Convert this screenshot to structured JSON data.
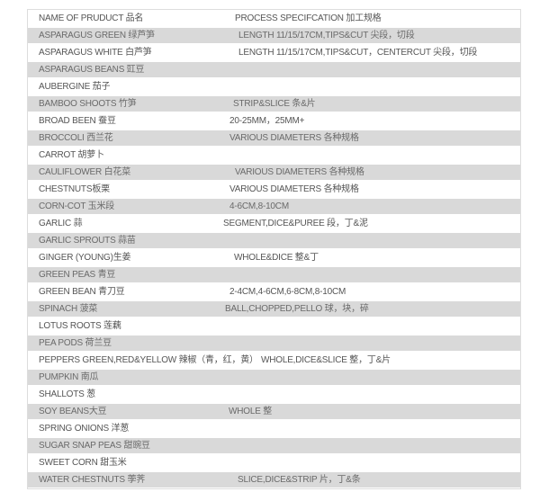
{
  "header": {
    "name": "NAME OF PRUDUCT 品名",
    "spec": "PROCESS SPECIFCATION 加工规格"
  },
  "rows": [
    {
      "name": "ASPARAGUS GREEN 绿芦笋",
      "spec": "LENGTH 11/15/17CM,TIPS&CUT 尖段，切段"
    },
    {
      "name": "ASPARAGUS WHITE 白芦笋",
      "spec": "LENGTH 11/15/17CM,TIPS&CUT，CENTERCUT 尖段，切段"
    },
    {
      "name": "ASPARAGUS BEANS 豇豆",
      "spec": ""
    },
    {
      "name": "AUBERGINE 茄子",
      "spec": ""
    },
    {
      "name": "BAMBOO SHOOTS 竹笋",
      "spec": "STRIP&SLICE 条&片"
    },
    {
      "name": "BROAD BEEN 蚕豆",
      "spec": "20-25MM，25MM+"
    },
    {
      "name": "BROCCOLI 西兰花",
      "spec": "VARIOUS DIAMETERS 各种规格"
    },
    {
      "name": "CARROT 胡萝卜",
      "spec": ""
    },
    {
      "name": "CAULIFLOWER 白花菜",
      "spec": "VARIOUS DIAMETERS 各种规格"
    },
    {
      "name": "CHESTNUTS板栗",
      "spec": "VARIOUS DIAMETERS 各种规格"
    },
    {
      "name": "CORN-COT 玉米段",
      "spec": "4-6CM,8-10CM"
    },
    {
      "name": "GARLIC 蒜",
      "spec": "SEGMENT,DICE&PUREE 段，丁&泥"
    },
    {
      "name": "GARLIC SPROUTS 蒜苗",
      "spec": ""
    },
    {
      "name": "GINGER (YOUNG)生姜",
      "spec": "WHOLE&DICE 整&丁"
    },
    {
      "name": "GREEN PEAS 青豆",
      "spec": ""
    },
    {
      "name": "GREEN BEAN 青刀豆",
      "spec": "2-4CM,4-6CM,6-8CM,8-10CM"
    },
    {
      "name": "SPINACH 菠菜",
      "spec": "BALL,CHOPPED,PELLO 球，块，碎"
    },
    {
      "name": "LOTUS ROOTS 莲藕",
      "spec": ""
    },
    {
      "name": "PEA PODS 荷兰豆",
      "spec": ""
    },
    {
      "name": "PEPPERS GREEN,RED&YELLOW 辣椒（青，红，黄）",
      "spec": "WHOLE,DICE&SLICE 整，丁&片"
    },
    {
      "name": "PUMPKIN 南瓜",
      "spec": ""
    },
    {
      "name": "SHALLOTS 葱",
      "spec": ""
    },
    {
      "name": "SOY BEANS大豆",
      "spec": "WHOLE 整"
    },
    {
      "name": "SPRING ONIONS 洋葱",
      "spec": ""
    },
    {
      "name": "SUGAR SNAP PEAS 甜豌豆",
      "spec": ""
    },
    {
      "name": "SWEET CORN 甜玉米",
      "spec": ""
    },
    {
      "name": "WATER CHESTNUTS 荸荠",
      "spec": "SLICE,DICE&STRIP 片，丁&条"
    }
  ]
}
